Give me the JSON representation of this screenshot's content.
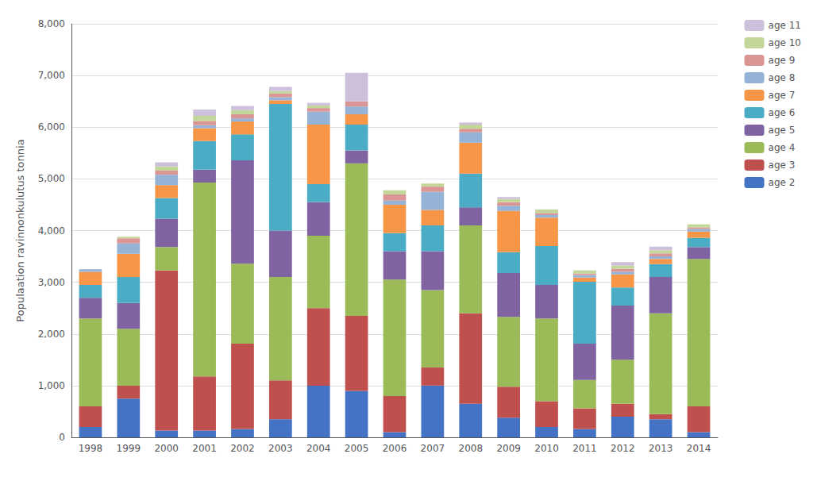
{
  "chart_data": {
    "type": "bar",
    "stacked": true,
    "categories": [
      "1998",
      "1999",
      "2000",
      "2001",
      "2002",
      "2003",
      "2004",
      "2005",
      "2006",
      "2007",
      "2008",
      "2009",
      "2010",
      "2011",
      "2012",
      "2013",
      "2014"
    ],
    "series": [
      {
        "name": "age 2",
        "color": "#4472C4",
        "values": [
          200,
          750,
          130,
          130,
          160,
          350,
          1000,
          900,
          100,
          1000,
          650,
          380,
          200,
          160,
          400,
          350,
          100
        ]
      },
      {
        "name": "age 3",
        "color": "#C0504D",
        "values": [
          400,
          250,
          3100,
          1050,
          1650,
          750,
          1500,
          1450,
          700,
          350,
          1750,
          600,
          500,
          400,
          250,
          100,
          500
        ]
      },
      {
        "name": "age 4",
        "color": "#9BBB59",
        "values": [
          1700,
          1100,
          450,
          3750,
          1550,
          2000,
          1400,
          2950,
          2250,
          1500,
          1700,
          1350,
          1600,
          550,
          850,
          1950,
          2850
        ]
      },
      {
        "name": "age 5",
        "color": "#8064A2",
        "values": [
          400,
          500,
          550,
          250,
          2000,
          900,
          650,
          250,
          550,
          750,
          350,
          850,
          650,
          700,
          1050,
          700,
          230
        ]
      },
      {
        "name": "age 6",
        "color": "#4BACC6",
        "values": [
          250,
          500,
          400,
          550,
          500,
          2450,
          350,
          500,
          350,
          500,
          650,
          400,
          750,
          1200,
          350,
          250,
          180
        ]
      },
      {
        "name": "age 7",
        "color": "#F79646",
        "values": [
          250,
          450,
          250,
          250,
          250,
          70,
          1150,
          200,
          550,
          300,
          600,
          800,
          550,
          80,
          250,
          100,
          120
        ]
      },
      {
        "name": "age 8",
        "color": "#95B3D7",
        "values": [
          50,
          200,
          200,
          60,
          60,
          60,
          250,
          150,
          80,
          350,
          200,
          100,
          50,
          50,
          50,
          50,
          50
        ]
      },
      {
        "name": "age 9",
        "color": "#D99694",
        "values": [
          0,
          100,
          80,
          80,
          80,
          70,
          70,
          100,
          120,
          100,
          70,
          70,
          40,
          30,
          60,
          60,
          30
        ]
      },
      {
        "name": "age 10",
        "color": "#C4D79B",
        "values": [
          0,
          30,
          80,
          100,
          80,
          50,
          50,
          0,
          80,
          60,
          80,
          60,
          70,
          60,
          60,
          60,
          60
        ]
      },
      {
        "name": "age 11",
        "color": "#CCC0DA",
        "values": [
          0,
          0,
          80,
          120,
          80,
          80,
          50,
          550,
          0,
          0,
          40,
          40,
          0,
          0,
          70,
          70,
          0
        ]
      }
    ],
    "ylabel": "Populaation ravinnonkulutus tonnia",
    "ylim": [
      0,
      8000
    ],
    "yticks": [
      0,
      1000,
      2000,
      3000,
      4000,
      5000,
      6000,
      7000,
      8000
    ],
    "grid": true,
    "legend": "upper right"
  }
}
